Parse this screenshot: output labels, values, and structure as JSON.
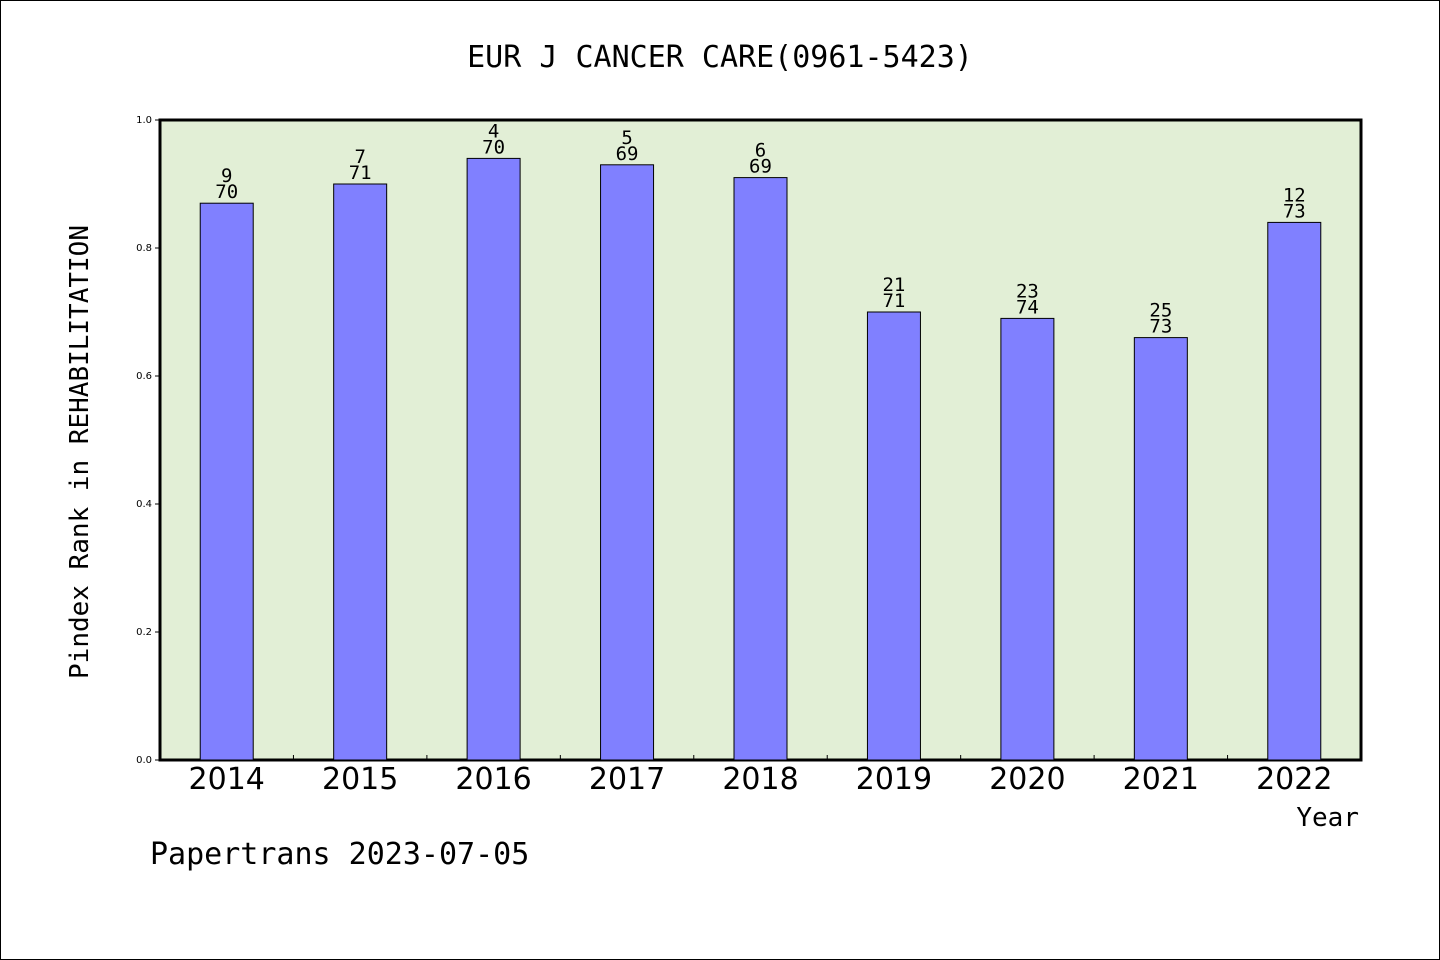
{
  "chart_data": {
    "type": "bar",
    "title": "EUR J CANCER CARE(0961-5423)",
    "xlabel": "Year",
    "ylabel": "Pindex Rank in REHABILITATION",
    "categories": [
      "2014",
      "2015",
      "2016",
      "2017",
      "2018",
      "2019",
      "2020",
      "2021",
      "2022"
    ],
    "values": [
      0.87,
      0.9,
      0.94,
      0.93,
      0.91,
      0.7,
      0.69,
      0.66,
      0.84
    ],
    "rank_labels": [
      "9",
      "7",
      "4",
      "5",
      "6",
      "21",
      "23",
      "25",
      "12"
    ],
    "total_labels": [
      "70",
      "71",
      "70",
      "69",
      "69",
      "71",
      "74",
      "73",
      "73"
    ],
    "ylim": [
      0,
      1.0
    ],
    "yticks": [
      "0.0",
      "0.2",
      "0.4",
      "0.6",
      "0.8",
      "1.0"
    ],
    "grid": false,
    "bar_color": "#8080ff",
    "plot_background": "#e2efd6"
  },
  "footer": {
    "credit": "Papertrans 2023-07-05"
  }
}
